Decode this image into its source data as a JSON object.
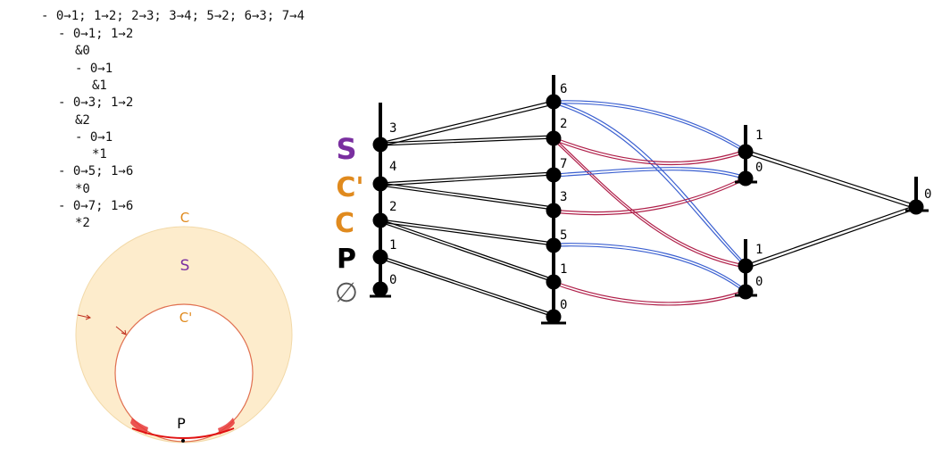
{
  "code_lines": [
    "- 0→1; 1→2; 2→3; 3→4; 5→2; 6→3; 7→4",
    "- 0→1; 1→2",
    "&0",
    "- 0→1",
    "&1",
    "- 0→3; 1→2",
    "&2",
    "- 0→1",
    "*1",
    "- 0→5; 1→6",
    "*0",
    "- 0→7; 1→6",
    "*2"
  ],
  "row_labels": [
    "S",
    "C'",
    "C",
    "P",
    "∅"
  ],
  "col1_nodes": [
    "3",
    "4",
    "2",
    "1",
    "0"
  ],
  "col2_nodes": [
    "6",
    "2",
    "7",
    "3",
    "5",
    "1",
    "0"
  ],
  "col3_top_nodes": [
    "1",
    "0"
  ],
  "col3_bottom_nodes": [
    "1",
    "0"
  ],
  "col4_nodes": [
    "0"
  ],
  "disk": {
    "label_c": "C",
    "label_s": "S",
    "label_c_prime": "C'",
    "label_p": "P"
  },
  "colors": {
    "purple": "#7a2fa0",
    "orange": "#e08a1e",
    "blue": "#3a5fd0",
    "crimson": "#b0204a",
    "disk_fill": "#fdeccc",
    "red": "#e01010"
  }
}
